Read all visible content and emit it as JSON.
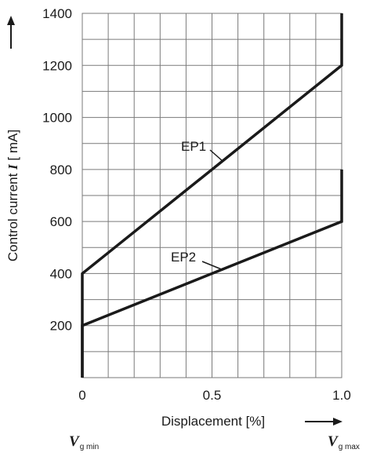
{
  "chart_data": {
    "type": "line",
    "x_tick_labels": [
      "0",
      "0.5",
      "1.0"
    ],
    "y_tick_labels": [
      "200",
      "400",
      "600",
      "800",
      "1000",
      "1200",
      "1400"
    ],
    "xlim": [
      0,
      1
    ],
    "ylim": [
      0,
      1400
    ],
    "grid": true,
    "xlabel": "Displacement [%]",
    "ylabel": "Control current I [ mA]",
    "ylabel_parts": {
      "before": "Control current ",
      "symbol": "I",
      "after": " [ mA]"
    },
    "x_min_label": {
      "main": "V",
      "sub": "g min"
    },
    "x_max_label": {
      "main": "V",
      "sub": "g max"
    },
    "series": [
      {
        "name": "EP1",
        "x": [
          0,
          0,
          1,
          1
        ],
        "y": [
          0,
          400,
          1200,
          1400
        ]
      },
      {
        "name": "EP2",
        "x": [
          0,
          0,
          1,
          1
        ],
        "y": [
          0,
          200,
          600,
          800
        ]
      }
    ],
    "color": "#1a1a1a"
  }
}
